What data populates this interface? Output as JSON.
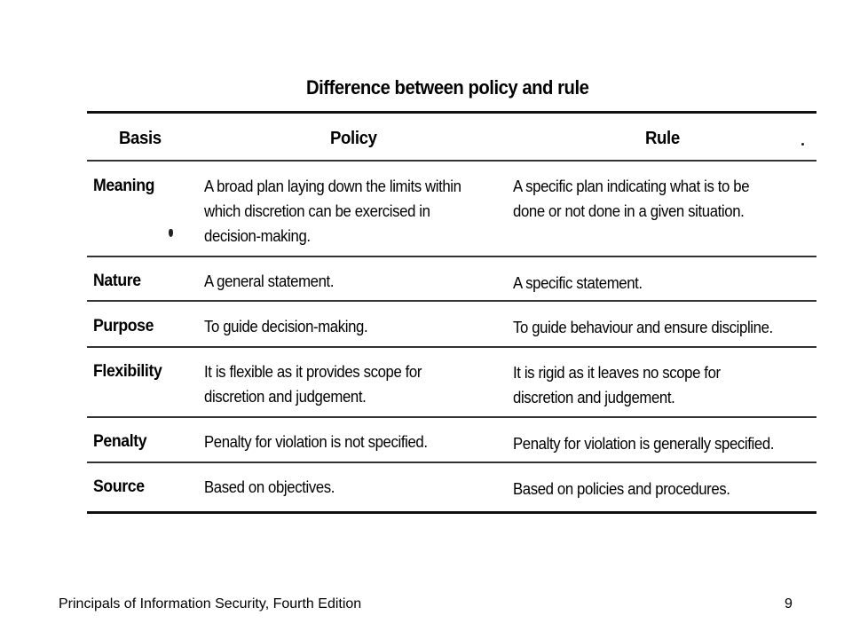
{
  "table": {
    "title": "Difference between policy and rule",
    "headers": {
      "basis": "Basis",
      "policy": "Policy",
      "rule": "Rule"
    },
    "rows": [
      {
        "basis": "Meaning",
        "policy": "A broad plan laying down the limits within\nwhich discretion can be exercised in\ndecision-making.",
        "rule": "A specific plan indicating what is to be\ndone or not done in a given situation."
      },
      {
        "basis": "Nature",
        "policy": "A general statement.",
        "rule": "A specific statement."
      },
      {
        "basis": "Purpose",
        "policy": "To guide decision-making.",
        "rule": "To guide behaviour and ensure discipline."
      },
      {
        "basis": "Flexibility",
        "policy": "It is flexible as it provides scope for\ndiscretion and judgement.",
        "rule": "It is rigid as it leaves no scope for\ndiscretion and judgement."
      },
      {
        "basis": "Penalty",
        "policy": "Penalty for violation is not specified.",
        "rule": "Penalty for violation is generally specified."
      },
      {
        "basis": "Source",
        "policy": "Based on objectives.",
        "rule": "Based on policies and procedures."
      }
    ]
  },
  "footer": {
    "book_title": "Principals of Information Security, Fourth Edition",
    "page_number": "9"
  }
}
